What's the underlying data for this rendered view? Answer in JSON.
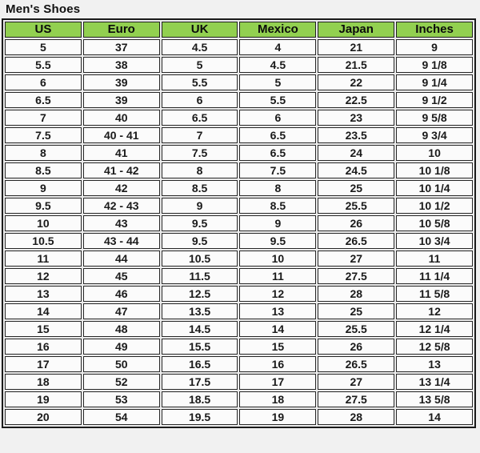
{
  "title": "Men's Shoes",
  "colors": {
    "header_bg": "#92D050",
    "cell_bg": "#fbfbfb",
    "border": "#1f1f1f",
    "page_bg": "#f1f1f1",
    "text": "#1a1a1a"
  },
  "table": {
    "columns": [
      "US",
      "Euro",
      "UK",
      "Mexico",
      "Japan",
      "Inches"
    ],
    "rows": [
      [
        "5",
        "37",
        "4.5",
        "4",
        "21",
        "9"
      ],
      [
        "5.5",
        "38",
        "5",
        "4.5",
        "21.5",
        "9 1/8"
      ],
      [
        "6",
        "39",
        "5.5",
        "5",
        "22",
        "9 1/4"
      ],
      [
        "6.5",
        "39",
        "6",
        "5.5",
        "22.5",
        "9 1/2"
      ],
      [
        "7",
        "40",
        "6.5",
        "6",
        "23",
        "9 5/8"
      ],
      [
        "7.5",
        "40 - 41",
        "7",
        "6.5",
        "23.5",
        "9 3/4"
      ],
      [
        "8",
        "41",
        "7.5",
        "6.5",
        "24",
        "10"
      ],
      [
        "8.5",
        "41 - 42",
        "8",
        "7.5",
        "24.5",
        "10 1/8"
      ],
      [
        "9",
        "42",
        "8.5",
        "8",
        "25",
        "10 1/4"
      ],
      [
        "9.5",
        "42 - 43",
        "9",
        "8.5",
        "25.5",
        "10 1/2"
      ],
      [
        "10",
        "43",
        "9.5",
        "9",
        "26",
        "10 5/8"
      ],
      [
        "10.5",
        "43 - 44",
        "9.5",
        "9.5",
        "26.5",
        "10 3/4"
      ],
      [
        "11",
        "44",
        "10.5",
        "10",
        "27",
        "11"
      ],
      [
        "12",
        "45",
        "11.5",
        "11",
        "27.5",
        "11 1/4"
      ],
      [
        "13",
        "46",
        "12.5",
        "12",
        "28",
        "11 5/8"
      ],
      [
        "14",
        "47",
        "13.5",
        "13",
        "25",
        "12"
      ],
      [
        "15",
        "48",
        "14.5",
        "14",
        "25.5",
        "12 1/4"
      ],
      [
        "16",
        "49",
        "15.5",
        "15",
        "26",
        "12 5/8"
      ],
      [
        "17",
        "50",
        "16.5",
        "16",
        "26.5",
        "13"
      ],
      [
        "18",
        "52",
        "17.5",
        "17",
        "27",
        "13 1/4"
      ],
      [
        "19",
        "53",
        "18.5",
        "18",
        "27.5",
        "13 5/8"
      ],
      [
        "20",
        "54",
        "19.5",
        "19",
        "28",
        "14"
      ]
    ]
  }
}
